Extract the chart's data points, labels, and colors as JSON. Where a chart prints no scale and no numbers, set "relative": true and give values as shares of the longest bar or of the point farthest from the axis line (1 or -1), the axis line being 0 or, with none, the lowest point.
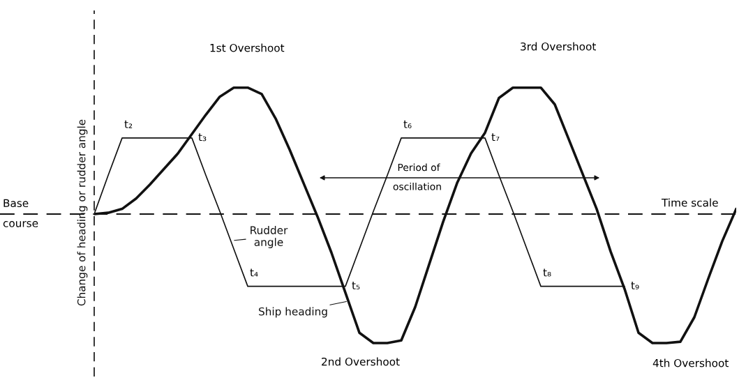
{
  "chart_data": {
    "type": "line",
    "relative": true,
    "ylabel": "Change of heading or rudder angle",
    "categories": [
      null,
      null,
      null,
      null,
      null,
      null,
      null,
      null,
      null,
      null,
      null,
      null,
      null,
      null,
      null,
      null,
      null,
      null,
      null,
      null,
      null,
      null,
      null,
      null,
      null,
      null,
      null,
      null,
      null,
      null,
      null,
      null,
      null,
      null,
      null,
      null,
      null,
      null,
      null,
      null,
      null,
      null,
      null,
      null,
      null,
      null,
      null
    ],
    "series": [
      {
        "name": "Rudder angle",
        "color": "#111111",
        "values": [
          0,
          0.3,
          0.59,
          0.59,
          0.59,
          0.59,
          0.59,
          0.59,
          0.3,
          0.02,
          -0.27,
          -0.56,
          -0.56,
          -0.56,
          -0.56,
          -0.56,
          -0.56,
          -0.56,
          -0.56,
          -0.27,
          0.02,
          0.3,
          0.59,
          0.59,
          0.59,
          0.59,
          0.59,
          0.59,
          0.59,
          0.3,
          0.02,
          -0.27,
          -0.56,
          -0.56,
          -0.56,
          -0.56,
          -0.56,
          -0.56,
          -0.56,
          null,
          null,
          null,
          null,
          null,
          null,
          null,
          null
        ]
      },
      {
        "name": "Ship heading",
        "color": "#111111",
        "values": [
          0,
          0.01,
          0.04,
          0.12,
          0.23,
          0.35,
          0.47,
          0.62,
          0.77,
          0.91,
          0.98,
          0.98,
          0.93,
          0.74,
          0.5,
          0.24,
          -0.02,
          -0.3,
          -0.61,
          -0.92,
          -1,
          -1,
          -0.98,
          -0.72,
          -0.39,
          -0.06,
          0.24,
          0.47,
          0.63,
          0.9,
          0.98,
          0.98,
          0.98,
          0.85,
          0.58,
          0.31,
          0.04,
          -0.29,
          -0.58,
          -0.92,
          -1,
          -1,
          -0.99,
          -0.8,
          -0.5,
          -0.21,
          0.04
        ]
      }
    ],
    "ref_lines": [
      {
        "axis": "y",
        "value": 0,
        "label": "Base course",
        "line_style": "dashed"
      }
    ],
    "annotations": [
      "t₂",
      "t₃",
      "t₄",
      "t₅",
      "t₆",
      "t₇",
      "t₈",
      "t₉",
      "1st Overshoot",
      "2nd Overshoot",
      "3rd Overshoot",
      "4th Overshoot",
      "Period of oscillation",
      "Time scale"
    ]
  }
}
